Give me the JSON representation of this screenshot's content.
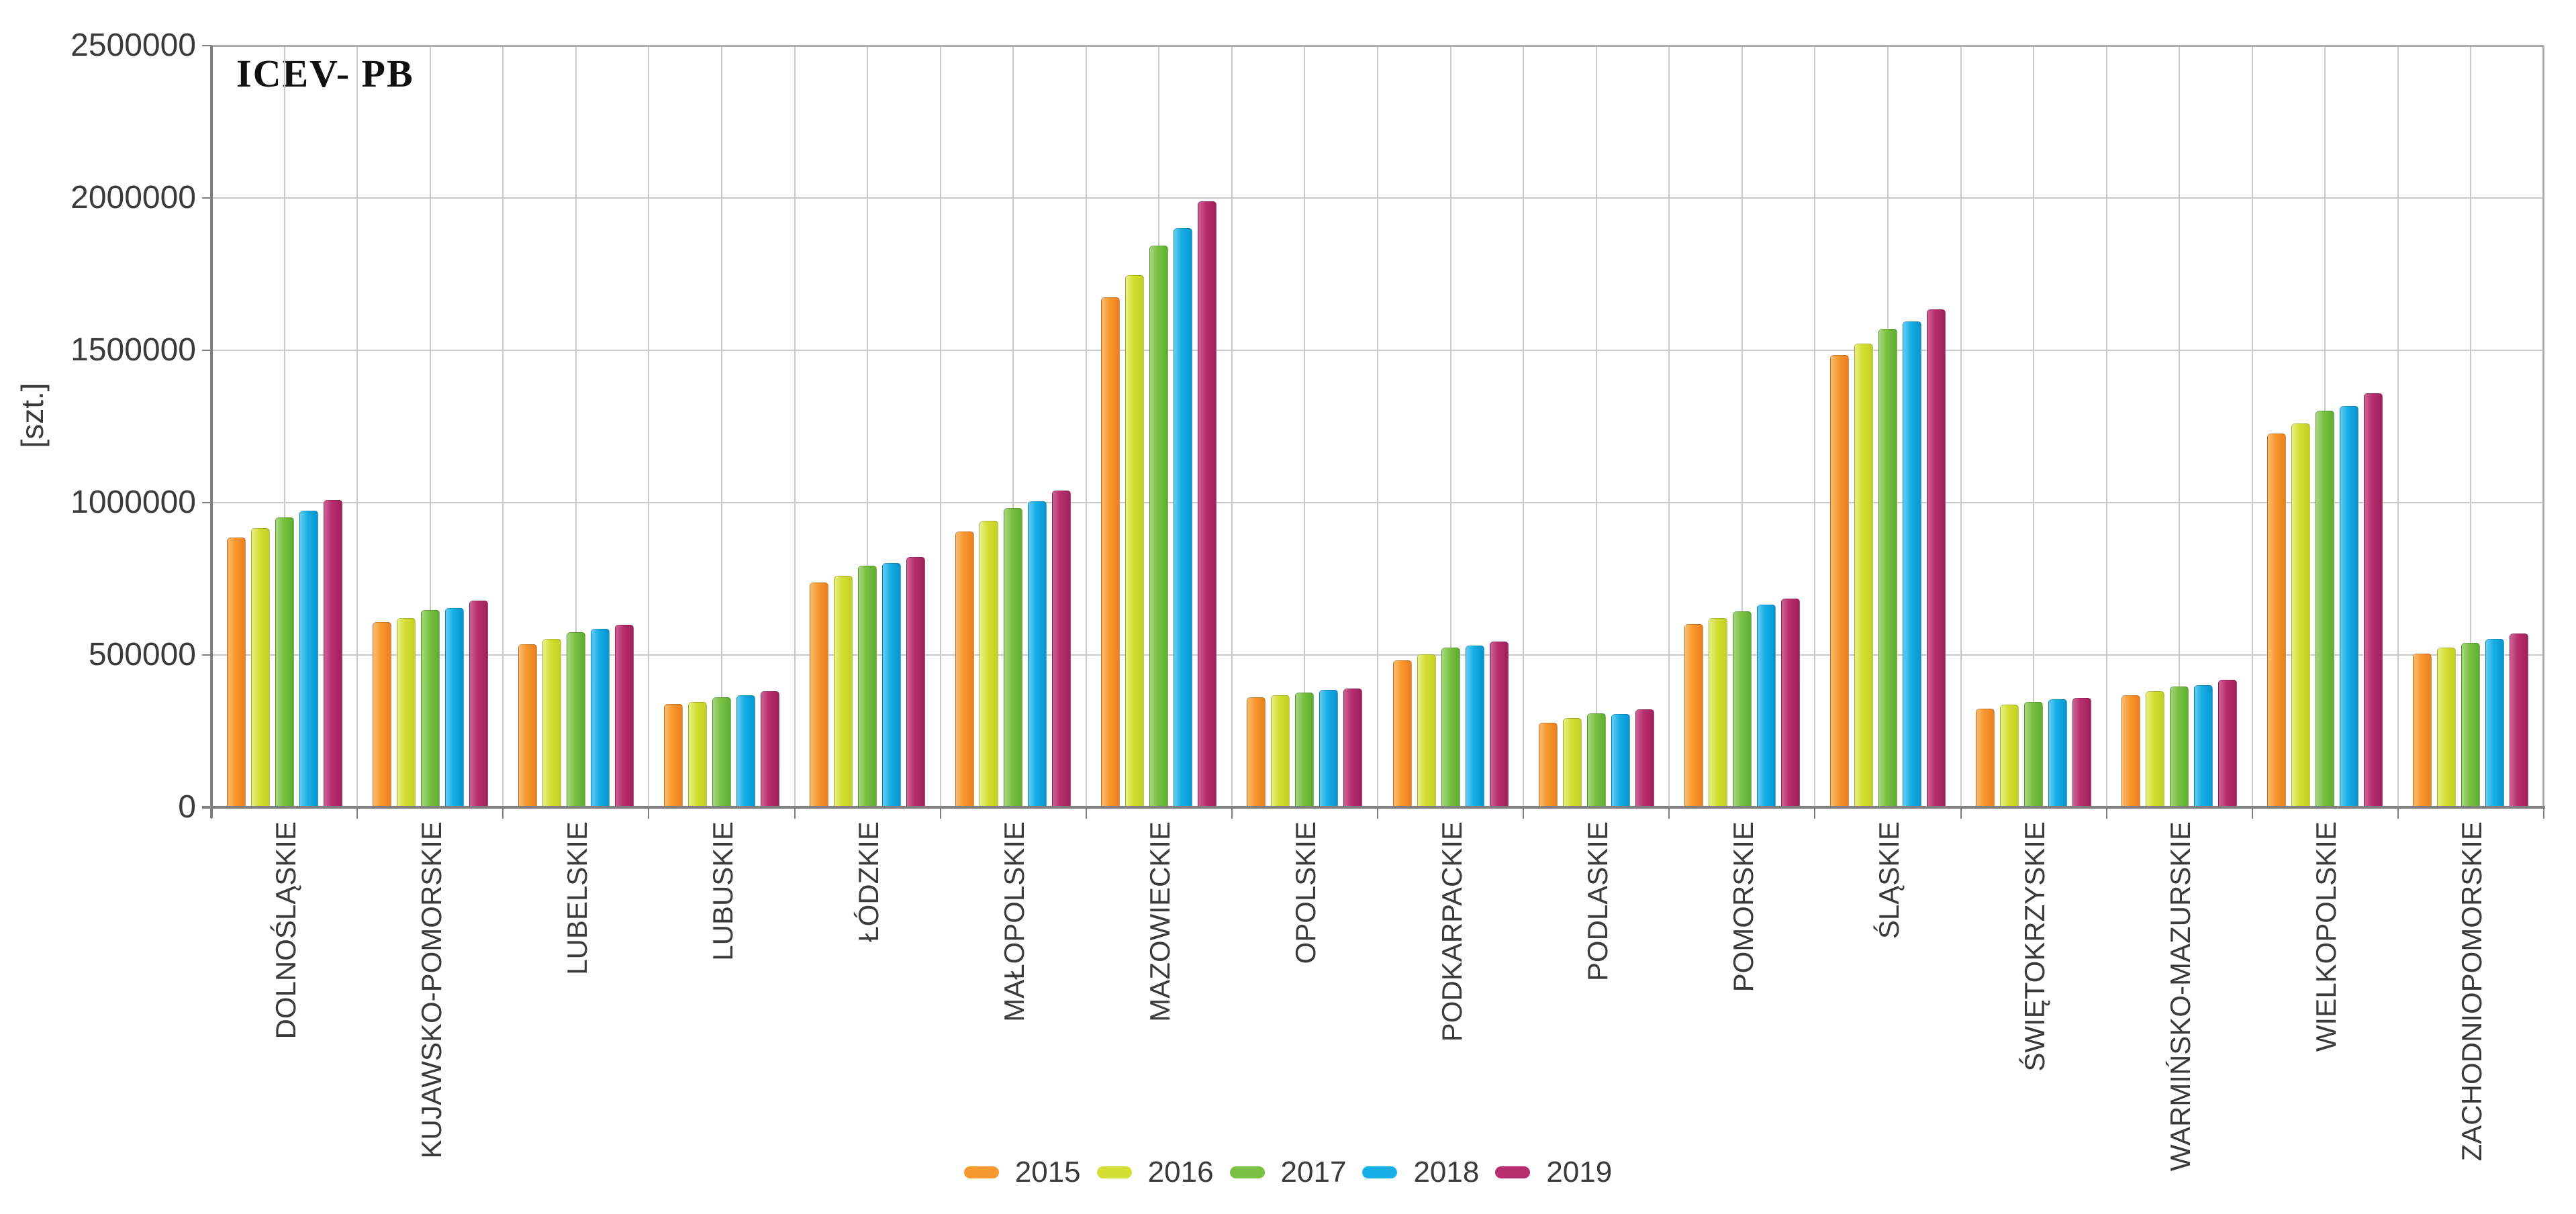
{
  "chart_data": {
    "type": "bar",
    "title": "ICEV- PB",
    "ylabel": "[szt.]",
    "ylim": [
      0,
      2500000
    ],
    "yticks": [
      "0",
      "500000",
      "1000000",
      "1500000",
      "2000000",
      "2500000"
    ],
    "grid": "both",
    "legend_position": "bottom-center",
    "categories": [
      "DOLNOŚLĄSKIE",
      "KUJAWSKO-POMORSKIE",
      "LUBELSKIE",
      "LUBUSKIE",
      "ŁÓDZKIE",
      "MAŁOPOLSKIE",
      "MAZOWIECKIE",
      "OPOLSKIE",
      "PODKARPACKIE",
      "PODLASKIE",
      "POMORSKIE",
      "ŚLĄSKIE",
      "ŚWIĘTOKRZYSKIE",
      "WARMIŃSKO-MAZURSKIE",
      "WIELKOPOLSKIE",
      "ZACHODNIOPOMORSKIE"
    ],
    "series": [
      {
        "name": "2015",
        "color": "#F8992F",
        "color_light": "#FBBC73",
        "color_dark": "#EC7F1E",
        "values": [
          885000,
          607000,
          535000,
          340000,
          738000,
          906000,
          1675000,
          361000,
          482000,
          278000,
          602000,
          1485000,
          323000,
          367000,
          1227000,
          505000
        ]
      },
      {
        "name": "2016",
        "color": "#D4DF33",
        "color_light": "#E9F08A",
        "color_dark": "#C3D023",
        "values": [
          917000,
          621000,
          554000,
          345000,
          760000,
          941000,
          1746000,
          368000,
          502000,
          294000,
          622000,
          1522000,
          338000,
          382000,
          1261000,
          525000
        ]
      },
      {
        "name": "2017",
        "color": "#79C143",
        "color_light": "#A8D680",
        "color_dark": "#5DAE30",
        "values": [
          952000,
          648000,
          575000,
          361000,
          792000,
          982000,
          1843000,
          377000,
          524000,
          308000,
          644000,
          1570000,
          345000,
          396000,
          1302000,
          540000
        ]
      },
      {
        "name": "2018",
        "color": "#17AFE7",
        "color_light": "#66CCF2",
        "color_dark": "#0894CF",
        "values": [
          974000,
          655000,
          585000,
          368000,
          802000,
          1005000,
          1900000,
          385000,
          531000,
          306000,
          665000,
          1594000,
          354000,
          402000,
          1317000,
          553000
        ]
      },
      {
        "name": "2019",
        "color": "#B72E6F",
        "color_light": "#CD6495",
        "color_dark": "#A0215C",
        "values": [
          1008000,
          678000,
          599000,
          381000,
          822000,
          1039000,
          1990000,
          390000,
          545000,
          321000,
          686000,
          1635000,
          360000,
          418000,
          1359000,
          570000
        ]
      }
    ]
  }
}
